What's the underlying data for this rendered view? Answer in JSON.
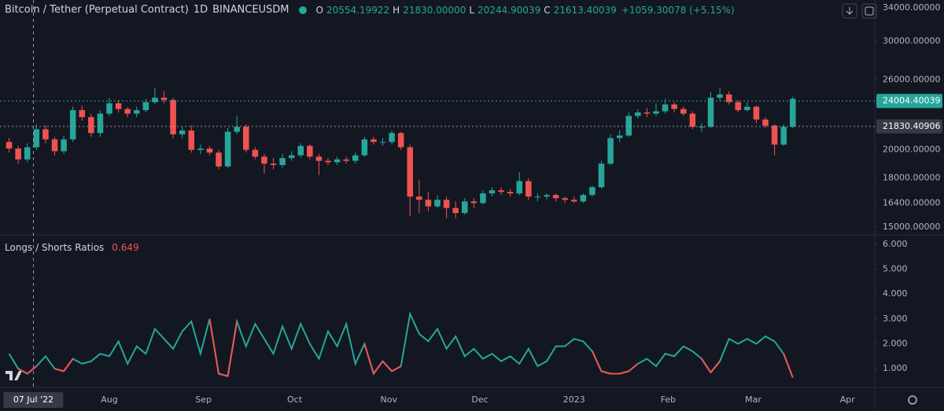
{
  "header": {
    "title": "Bitcoin / Tether (Perpetual Contract)",
    "interval": "1D",
    "exchange": "BINANCEUSDM",
    "ohlc": [
      {
        "label": "O",
        "value": 20554.19922,
        "text": "20554.19922"
      },
      {
        "label": "H",
        "value": 21830,
        "text": "21830.00000"
      },
      {
        "label": "L",
        "value": 20244.90039,
        "text": "20244.90039"
      },
      {
        "label": "C",
        "value": 21613.40039,
        "text": "21613.40039"
      }
    ],
    "change": {
      "value": 1059.30078,
      "percent": 5.15,
      "text": "+1059.30078 (+5.15%)"
    }
  },
  "chart_data": [
    {
      "type": "candlestick",
      "log_scale": true,
      "up_color": "#26a69a",
      "down_color": "#ef5350",
      "xlim": [
        -5,
        283
      ],
      "xticks": [
        {
          "value": 31,
          "label": "Aug"
        },
        {
          "value": 62,
          "label": "Sep"
        },
        {
          "value": 92,
          "label": "Oct"
        },
        {
          "value": 123,
          "label": "Nov"
        },
        {
          "value": 153,
          "label": "Dec"
        },
        {
          "value": 184,
          "label": "2023"
        },
        {
          "value": 215,
          "label": "Feb"
        },
        {
          "value": 243,
          "label": "Mar"
        },
        {
          "value": 274,
          "label": "Apr"
        }
      ],
      "crosshair": {
        "x": {
          "value": 6,
          "label": "07 Jul '22"
        },
        "y": {
          "value": 21830.40906,
          "label": "21830.40906"
        }
      },
      "last_price": {
        "value": 24004.40039,
        "label": "24004.40039",
        "color": "#26a69a"
      },
      "ylim": [
        14600,
        35000
      ],
      "yticks": [
        {
          "value": 15000,
          "label": "15000.00000"
        },
        {
          "value": 16400,
          "label": "16400.00000"
        },
        {
          "value": 18000,
          "label": "18000.00000"
        },
        {
          "value": 20000,
          "label": "20000.00000"
        },
        {
          "value": 26000,
          "label": "26000.00000"
        },
        {
          "value": 30000,
          "label": "30000.00000"
        },
        {
          "value": 34000,
          "label": "34000.00000"
        }
      ],
      "x": [
        -2,
        1,
        4,
        7,
        10,
        13,
        16,
        19,
        22,
        25,
        28,
        31,
        34,
        37,
        40,
        43,
        46,
        49,
        52,
        55,
        58,
        61,
        64,
        67,
        70,
        73,
        76,
        79,
        82,
        85,
        88,
        91,
        94,
        97,
        100,
        103,
        106,
        109,
        112,
        115,
        118,
        121,
        124,
        127,
        130,
        133,
        136,
        139,
        142,
        145,
        148,
        151,
        154,
        157,
        160,
        163,
        166,
        169,
        172,
        175,
        178,
        181,
        184,
        187,
        190,
        193,
        196,
        199,
        202,
        205,
        208,
        211,
        214,
        217,
        220,
        223,
        226,
        229,
        232,
        235,
        238,
        241,
        244,
        247,
        250,
        253,
        256
      ],
      "open": [
        20600,
        20100,
        19300,
        20200,
        21600,
        20800,
        19900,
        20800,
        23200,
        22600,
        21300,
        22900,
        23800,
        23300,
        22900,
        23200,
        23900,
        24300,
        24100,
        21200,
        21500,
        20000,
        20100,
        19800,
        18800,
        21400,
        21800,
        20000,
        19500,
        19000,
        18900,
        19400,
        19600,
        20300,
        19500,
        19200,
        19100,
        19300,
        19200,
        19600,
        20800,
        20600,
        20600,
        21300,
        20200,
        16800,
        16600,
        16200,
        16600,
        16100,
        15800,
        16500,
        16400,
        17000,
        17200,
        17100,
        17000,
        17800,
        16800,
        16800,
        16900,
        16700,
        16600,
        16500,
        16900,
        17400,
        19000,
        20900,
        21100,
        22700,
        23000,
        22900,
        23100,
        23700,
        23300,
        22900,
        21800,
        21800,
        24300,
        24600,
        23900,
        23200,
        23500,
        22400,
        21900,
        20400,
        21800
      ],
      "high": [
        20900,
        20300,
        20500,
        22000,
        21900,
        21000,
        21100,
        23500,
        23600,
        22900,
        23200,
        24300,
        24100,
        23500,
        23500,
        24200,
        25200,
        24900,
        24300,
        21800,
        21900,
        20400,
        20300,
        20000,
        21700,
        22700,
        22000,
        20200,
        19700,
        19400,
        19700,
        19900,
        20500,
        20400,
        19700,
        19400,
        19500,
        19500,
        19800,
        21000,
        21000,
        20900,
        21500,
        21400,
        20400,
        17900,
        17100,
        16900,
        16800,
        16500,
        16700,
        16700,
        17200,
        17400,
        17400,
        17300,
        18400,
        18000,
        17000,
        17000,
        17000,
        16800,
        16800,
        17000,
        17500,
        19200,
        21200,
        21500,
        23000,
        23300,
        23400,
        23800,
        24200,
        23900,
        23500,
        23100,
        22100,
        24800,
        25200,
        24900,
        24100,
        23900,
        23600,
        22600,
        22000,
        22000,
        24400
      ],
      "low": [
        19800,
        19000,
        19100,
        20000,
        20500,
        19600,
        19700,
        20600,
        22300,
        21000,
        21000,
        22700,
        23000,
        22600,
        22600,
        23000,
        23700,
        23800,
        20900,
        20900,
        19800,
        19700,
        19600,
        18600,
        18700,
        21200,
        19800,
        19300,
        18300,
        18600,
        18700,
        19200,
        19400,
        19300,
        18200,
        18900,
        18900,
        19000,
        19000,
        19500,
        20400,
        20300,
        20400,
        20000,
        15600,
        15800,
        15900,
        16100,
        15500,
        15500,
        15700,
        16100,
        16300,
        16800,
        16900,
        16800,
        16900,
        16600,
        16500,
        16600,
        16500,
        16400,
        16400,
        16400,
        16800,
        17300,
        18900,
        20600,
        21000,
        22500,
        22600,
        22700,
        22900,
        23000,
        22700,
        21600,
        21400,
        21700,
        24000,
        23700,
        23000,
        23100,
        22100,
        21700,
        19600,
        20300,
        21700
      ],
      "close": [
        20100,
        19300,
        20200,
        21600,
        20800,
        19900,
        20800,
        23200,
        22600,
        21300,
        22900,
        23800,
        23300,
        22900,
        23200,
        23900,
        24300,
        24100,
        21200,
        21500,
        20000,
        20100,
        19800,
        18800,
        21400,
        21800,
        20000,
        19500,
        19000,
        18900,
        19400,
        19600,
        20300,
        19500,
        19200,
        19100,
        19300,
        19200,
        19600,
        20800,
        20600,
        20600,
        21300,
        20200,
        16800,
        16600,
        16200,
        16600,
        16100,
        15800,
        16500,
        16400,
        17000,
        17200,
        17100,
        17000,
        17800,
        16800,
        16800,
        16900,
        16700,
        16600,
        16500,
        16900,
        17400,
        19000,
        20900,
        21100,
        22700,
        23000,
        22900,
        23100,
        23700,
        23300,
        22900,
        21800,
        21800,
        24300,
        24600,
        23900,
        23200,
        23500,
        22400,
        21900,
        20400,
        21800,
        24200
      ]
    },
    {
      "type": "line",
      "title": "Longs / Shorts Ratios",
      "color": "#26a69a",
      "low_color": "#ef5350",
      "xlim": [
        -5,
        283
      ],
      "ylim": [
        0.28,
        6.34
      ],
      "yticks": [
        {
          "value": 1,
          "label": "1.000"
        },
        {
          "value": 2,
          "label": "2.000"
        },
        {
          "value": 3,
          "label": "3.000"
        },
        {
          "value": 4,
          "label": "4.000"
        },
        {
          "value": 5,
          "label": "5.000"
        },
        {
          "value": 6,
          "label": "6.000"
        }
      ],
      "x": [
        -2,
        1,
        4,
        7,
        10,
        13,
        16,
        19,
        22,
        25,
        28,
        31,
        34,
        37,
        40,
        43,
        46,
        49,
        52,
        55,
        58,
        61,
        64,
        67,
        70,
        73,
        76,
        79,
        82,
        85,
        88,
        91,
        94,
        97,
        100,
        103,
        106,
        109,
        112,
        115,
        118,
        121,
        124,
        127,
        130,
        133,
        136,
        139,
        142,
        145,
        148,
        151,
        154,
        157,
        160,
        163,
        166,
        169,
        172,
        175,
        178,
        181,
        184,
        187,
        190,
        193,
        196,
        199,
        202,
        205,
        208,
        211,
        214,
        217,
        220,
        223,
        226,
        229,
        232,
        235,
        238,
        241,
        244,
        247,
        250,
        253,
        256
      ],
      "values": [
        1.6,
        1.0,
        0.8,
        1.1,
        1.5,
        1.0,
        0.9,
        1.4,
        1.2,
        1.3,
        1.6,
        1.5,
        2.1,
        1.2,
        1.9,
        1.6,
        2.6,
        2.2,
        1.8,
        2.5,
        2.9,
        1.6,
        3.0,
        0.8,
        0.7,
        2.9,
        1.9,
        2.8,
        2.2,
        1.6,
        2.7,
        1.8,
        2.8,
        2.0,
        1.4,
        2.5,
        1.9,
        2.8,
        1.2,
        2.0,
        0.8,
        1.3,
        0.9,
        1.1,
        3.2,
        2.4,
        2.1,
        2.6,
        1.8,
        2.3,
        1.5,
        1.8,
        1.4,
        1.6,
        1.3,
        1.5,
        1.2,
        1.8,
        1.1,
        1.3,
        1.9,
        1.9,
        2.2,
        2.1,
        1.7,
        0.9,
        0.8,
        0.8,
        0.9,
        1.2,
        1.4,
        1.1,
        1.6,
        1.5,
        1.9,
        1.7,
        1.4,
        0.85,
        1.3,
        2.2,
        2.0,
        2.2,
        2.0,
        2.3,
        2.1,
        1.6,
        0.649
      ]
    }
  ]
}
